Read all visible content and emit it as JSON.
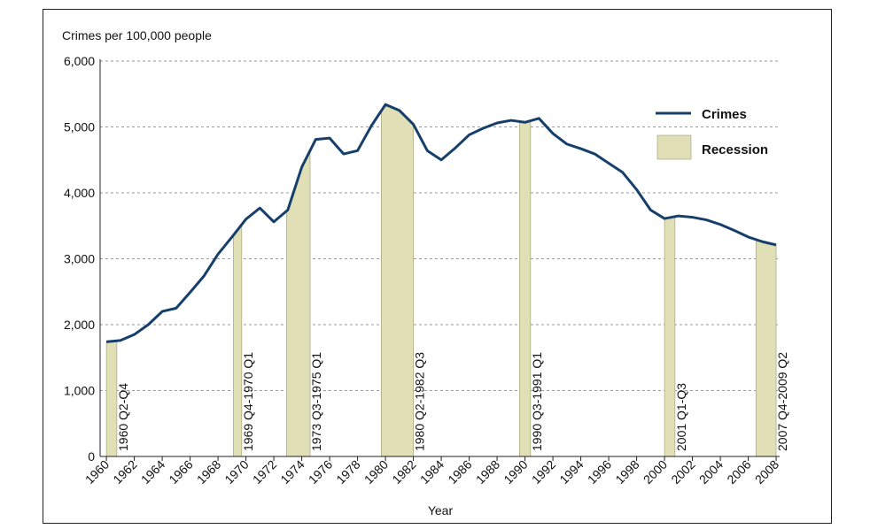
{
  "chart_data": {
    "type": "line",
    "y_label": "Crimes per 100,000 people",
    "x_label": "Year",
    "x": [
      1960,
      1961,
      1962,
      1963,
      1964,
      1965,
      1966,
      1967,
      1968,
      1969,
      1970,
      1971,
      1972,
      1973,
      1974,
      1975,
      1976,
      1977,
      1978,
      1979,
      1980,
      1981,
      1982,
      1983,
      1984,
      1985,
      1986,
      1987,
      1988,
      1989,
      1990,
      1991,
      1992,
      1993,
      1994,
      1995,
      1996,
      1997,
      1998,
      1999,
      2000,
      2001,
      2002,
      2003,
      2004,
      2005,
      2006,
      2007,
      2008
    ],
    "series": [
      {
        "name": "Crimes",
        "color": "#173f6b",
        "values": [
          1740,
          1760,
          1850,
          2000,
          2200,
          2250,
          2490,
          2740,
          3070,
          3330,
          3600,
          3770,
          3560,
          3740,
          4390,
          4810,
          4830,
          4590,
          4640,
          5020,
          5340,
          5250,
          5040,
          4640,
          4500,
          4680,
          4880,
          4980,
          5060,
          5100,
          5070,
          5130,
          4900,
          4740,
          4670,
          4590,
          4450,
          4310,
          4050,
          3740,
          3610,
          3650,
          3630,
          3590,
          3520,
          3430,
          3330,
          3260,
          3210
        ]
      }
    ],
    "recessions": {
      "name": "Recession",
      "color": "#e0dfb5",
      "periods": [
        {
          "label": "1960 Q2-Q4",
          "start": 1960.0,
          "end": 1960.75
        },
        {
          "label": "1969 Q4-1970 Q1",
          "start": 1969.1,
          "end": 1969.7
        },
        {
          "label": "1973 Q3-1975 Q1",
          "start": 1972.9,
          "end": 1974.6
        },
        {
          "label": "1980 Q2-1982 Q3",
          "start": 1979.7,
          "end": 1982.0
        },
        {
          "label": "1990 Q3-1991 Q1",
          "start": 1989.6,
          "end": 1990.4
        },
        {
          "label": "2001 Q1-Q3",
          "start": 2000.0,
          "end": 2000.75
        },
        {
          "label": "2007 Q4-2009 Q2",
          "start": 2006.55,
          "end": 2008.0
        }
      ]
    },
    "xlim": [
      1959.55,
      2008.25
    ],
    "xticks": [
      1960,
      1962,
      1964,
      1966,
      1968,
      1970,
      1972,
      1974,
      1976,
      1978,
      1980,
      1982,
      1984,
      1986,
      1988,
      1990,
      1992,
      1994,
      1996,
      1998,
      2000,
      2002,
      2004,
      2006,
      2008
    ],
    "ylim": [
      0,
      6000
    ],
    "yticks": [
      0,
      {
        "value": 1000,
        "label": "1,000"
      },
      {
        "value": 2000,
        "label": "2,000"
      },
      {
        "value": 3000,
        "label": "3,000"
      },
      {
        "value": 4000,
        "label": "4,000"
      },
      {
        "value": 5000,
        "label": "5,000"
      },
      {
        "value": 6000,
        "label": "6,000"
      }
    ],
    "grid": true
  }
}
